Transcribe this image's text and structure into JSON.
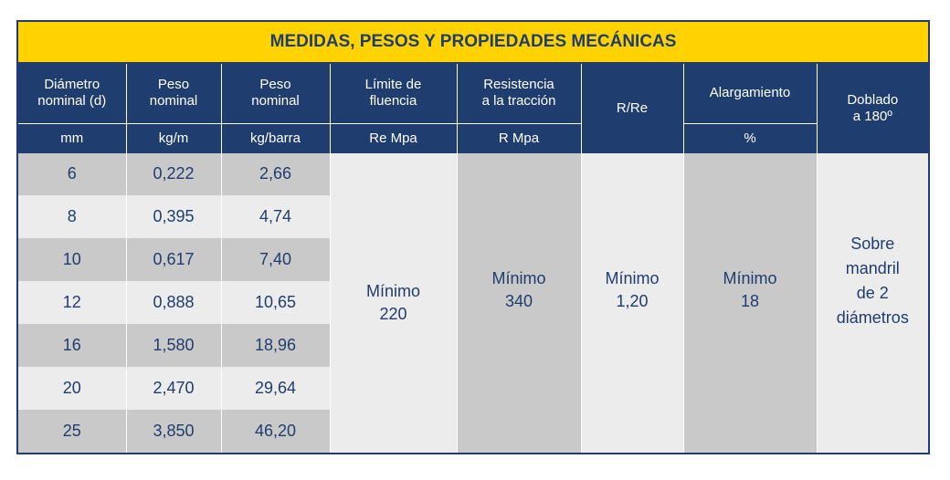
{
  "table": {
    "title": "MEDIDAS, PESOS Y PROPIEDADES MECÁNICAS",
    "headers": [
      {
        "line1": "Diámetro",
        "line2": "nominal (d)",
        "unit": "mm"
      },
      {
        "line1": "Peso",
        "line2": "nominal",
        "unit": "kg/m"
      },
      {
        "line1": "Peso",
        "line2": "nominal",
        "unit": "kg/barra"
      },
      {
        "line1": "Límite de",
        "line2": "fluencia",
        "unit": "Re Mpa"
      },
      {
        "line1": "Resistencia",
        "line2": "a la tracción",
        "unit": "R Mpa"
      },
      {
        "line1": "R/Re",
        "line2": "",
        "unit": ""
      },
      {
        "line1": "Alargamiento",
        "line2": "",
        "unit": "%"
      },
      {
        "line1": "Doblado",
        "line2": "a 180º",
        "unit": ""
      }
    ],
    "rows": [
      {
        "d": "6",
        "kgm": "0,222",
        "kgbarra": "2,66"
      },
      {
        "d": "8",
        "kgm": "0,395",
        "kgbarra": "4,74"
      },
      {
        "d": "10",
        "kgm": "0,617",
        "kgbarra": "7,40"
      },
      {
        "d": "12",
        "kgm": "0,888",
        "kgbarra": "10,65"
      },
      {
        "d": "16",
        "kgm": "1,580",
        "kgbarra": "18,96"
      },
      {
        "d": "20",
        "kgm": "2,470",
        "kgbarra": "29,64"
      },
      {
        "d": "25",
        "kgm": "3,850",
        "kgbarra": "46,20"
      }
    ],
    "merged": {
      "fluencia": [
        "Mínimo",
        "220"
      ],
      "traccion": [
        "Mínimo",
        "340"
      ],
      "rre": [
        "Mínimo",
        "1,20"
      ],
      "alargamiento": [
        "Mínimo",
        "18"
      ],
      "doblado": [
        "Sobre",
        "mandril",
        "de 2",
        "diámetros"
      ]
    }
  }
}
